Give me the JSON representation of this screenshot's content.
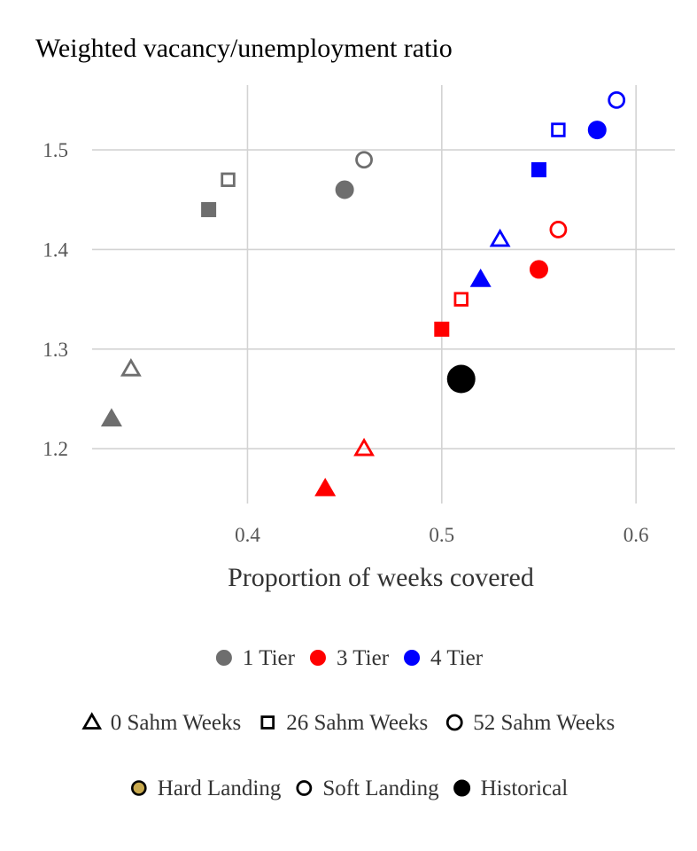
{
  "chart_data": {
    "type": "scatter",
    "title": "Weighted vacancy/unemployment ratio",
    "xlabel": "Proportion of weeks covered",
    "ylabel": "",
    "xlim": [
      0.32,
      0.62
    ],
    "ylim": [
      1.145,
      1.565
    ],
    "x_ticks": [
      {
        "value": 0.4,
        "label": "0.4"
      },
      {
        "value": 0.5,
        "label": "0.5"
      },
      {
        "value": 0.6,
        "label": "0.6"
      }
    ],
    "y_ticks": [
      {
        "value": 1.2,
        "label": "1.2"
      },
      {
        "value": 1.3,
        "label": "1.3"
      },
      {
        "value": 1.4,
        "label": "1.4"
      },
      {
        "value": 1.5,
        "label": "1.5"
      }
    ],
    "grid": true,
    "colors": {
      "1 Tier": "#6e6e6e",
      "3 Tier": "#ff0000",
      "4 Tier": "#0000ff",
      "Historical": "#000000",
      "Hard Landing": "#c8a94e"
    },
    "points": [
      {
        "tier": "1 Tier",
        "sahm": "0 Sahm Weeks",
        "landing": "Hard Landing",
        "x": 0.33,
        "y": 1.23
      },
      {
        "tier": "1 Tier",
        "sahm": "0 Sahm Weeks",
        "landing": "Soft Landing",
        "x": 0.34,
        "y": 1.28
      },
      {
        "tier": "1 Tier",
        "sahm": "26 Sahm Weeks",
        "landing": "Hard Landing",
        "x": 0.38,
        "y": 1.44
      },
      {
        "tier": "1 Tier",
        "sahm": "26 Sahm Weeks",
        "landing": "Soft Landing",
        "x": 0.39,
        "y": 1.47
      },
      {
        "tier": "1 Tier",
        "sahm": "52 Sahm Weeks",
        "landing": "Hard Landing",
        "x": 0.45,
        "y": 1.46
      },
      {
        "tier": "1 Tier",
        "sahm": "52 Sahm Weeks",
        "landing": "Soft Landing",
        "x": 0.46,
        "y": 1.49
      },
      {
        "tier": "3 Tier",
        "sahm": "0 Sahm Weeks",
        "landing": "Hard Landing",
        "x": 0.44,
        "y": 1.16
      },
      {
        "tier": "3 Tier",
        "sahm": "0 Sahm Weeks",
        "landing": "Soft Landing",
        "x": 0.46,
        "y": 1.2
      },
      {
        "tier": "3 Tier",
        "sahm": "26 Sahm Weeks",
        "landing": "Hard Landing",
        "x": 0.5,
        "y": 1.32
      },
      {
        "tier": "3 Tier",
        "sahm": "26 Sahm Weeks",
        "landing": "Soft Landing",
        "x": 0.51,
        "y": 1.35
      },
      {
        "tier": "3 Tier",
        "sahm": "52 Sahm Weeks",
        "landing": "Hard Landing",
        "x": 0.55,
        "y": 1.38
      },
      {
        "tier": "3 Tier",
        "sahm": "52 Sahm Weeks",
        "landing": "Soft Landing",
        "x": 0.56,
        "y": 1.42
      },
      {
        "tier": "4 Tier",
        "sahm": "0 Sahm Weeks",
        "landing": "Hard Landing",
        "x": 0.52,
        "y": 1.37
      },
      {
        "tier": "4 Tier",
        "sahm": "0 Sahm Weeks",
        "landing": "Soft Landing",
        "x": 0.53,
        "y": 1.41
      },
      {
        "tier": "4 Tier",
        "sahm": "26 Sahm Weeks",
        "landing": "Hard Landing",
        "x": 0.55,
        "y": 1.48
      },
      {
        "tier": "4 Tier",
        "sahm": "26 Sahm Weeks",
        "landing": "Soft Landing",
        "x": 0.56,
        "y": 1.52
      },
      {
        "tier": "4 Tier",
        "sahm": "52 Sahm Weeks",
        "landing": "Hard Landing",
        "x": 0.58,
        "y": 1.52
      },
      {
        "tier": "4 Tier",
        "sahm": "52 Sahm Weeks",
        "landing": "Soft Landing",
        "x": 0.59,
        "y": 1.55
      },
      {
        "tier": "Historical",
        "sahm": "",
        "landing": "Historical",
        "x": 0.51,
        "y": 1.27
      }
    ],
    "legend": {
      "placement": "bottom",
      "tier": [
        {
          "label": "1 Tier",
          "color": "#6e6e6e"
        },
        {
          "label": "3 Tier",
          "color": "#ff0000"
        },
        {
          "label": "4 Tier",
          "color": "#0000ff"
        }
      ],
      "sahm": [
        {
          "label": "0 Sahm Weeks",
          "shape": "triangle"
        },
        {
          "label": "26 Sahm Weeks",
          "shape": "square"
        },
        {
          "label": "52 Sahm Weeks",
          "shape": "circle"
        }
      ],
      "landing": [
        {
          "label": "Hard Landing",
          "style": "filled",
          "color": "#c8a94e"
        },
        {
          "label": "Soft Landing",
          "style": "hollow"
        },
        {
          "label": "Historical",
          "style": "filled",
          "color": "#000000"
        }
      ]
    }
  }
}
